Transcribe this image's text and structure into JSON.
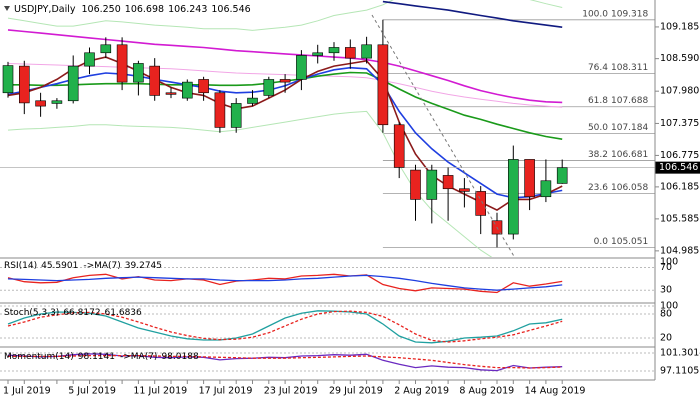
{
  "chart_data": {
    "type": "candlestick",
    "header": {
      "symbol": "USDJPY,Daily",
      "ohlc": [
        "106.250",
        "106.698",
        "106.243",
        "106.546"
      ]
    },
    "categories": [
      "1 Jul 2019",
      null,
      null,
      null,
      "5 Jul 2019",
      null,
      null,
      null,
      "11 Jul 2019",
      null,
      null,
      null,
      "17 Jul 2019",
      null,
      null,
      null,
      "23 Jul 2019",
      null,
      null,
      null,
      "29 Jul 2019",
      null,
      null,
      null,
      "2 Aug 2019",
      null,
      null,
      null,
      "8 Aug 2019",
      null,
      null,
      null,
      "14 Aug 2019",
      null,
      null
    ],
    "ohlc": [
      [
        107.95,
        108.53,
        107.86,
        108.46
      ],
      [
        108.45,
        108.55,
        107.55,
        107.76
      ],
      [
        107.8,
        107.95,
        107.5,
        107.7
      ],
      [
        107.75,
        107.85,
        107.65,
        107.8
      ],
      [
        107.8,
        108.65,
        107.75,
        108.45
      ],
      [
        108.45,
        108.8,
        108.3,
        108.7
      ],
      [
        108.7,
        108.99,
        108.6,
        108.85
      ],
      [
        108.85,
        108.99,
        108.0,
        108.15
      ],
      [
        108.15,
        108.55,
        107.9,
        108.5
      ],
      [
        108.45,
        108.6,
        107.8,
        107.9
      ],
      [
        107.95,
        108.05,
        107.85,
        107.92
      ],
      [
        107.85,
        108.2,
        107.8,
        108.15
      ],
      [
        108.2,
        108.25,
        107.8,
        107.95
      ],
      [
        107.95,
        108.0,
        107.2,
        107.3
      ],
      [
        107.3,
        107.85,
        107.2,
        107.75
      ],
      [
        107.75,
        108.0,
        107.7,
        107.85
      ],
      [
        107.9,
        108.25,
        107.85,
        108.2
      ],
      [
        108.2,
        108.3,
        107.95,
        108.15
      ],
      [
        108.2,
        108.75,
        108.0,
        108.65
      ],
      [
        108.65,
        108.85,
        108.5,
        108.7
      ],
      [
        108.7,
        108.9,
        108.55,
        108.8
      ],
      [
        108.8,
        108.95,
        108.4,
        108.6
      ],
      [
        108.6,
        109.0,
        108.5,
        108.85
      ],
      [
        108.85,
        109.32,
        107.2,
        107.35
      ],
      [
        107.35,
        107.4,
        106.35,
        106.55
      ],
      [
        106.5,
        106.6,
        105.55,
        105.95
      ],
      [
        105.95,
        106.6,
        105.5,
        106.5
      ],
      [
        106.4,
        106.55,
        105.55,
        106.15
      ],
      [
        106.15,
        106.35,
        105.8,
        106.1
      ],
      [
        106.1,
        106.2,
        105.3,
        105.65
      ],
      [
        105.55,
        105.7,
        105.05,
        105.3
      ],
      [
        105.3,
        106.96,
        105.2,
        106.7
      ],
      [
        106.7,
        106.7,
        105.75,
        106.0
      ],
      [
        106.0,
        106.7,
        105.9,
        106.3
      ],
      [
        106.25,
        106.698,
        106.243,
        106.546
      ]
    ],
    "up_color": "#22b14c",
    "down_color": "#e8231f",
    "ylim": [
      104.87,
      109.69
    ],
    "yticks": [
      109.185,
      {
        "value": 108.59,
        "label": "108.590"
      },
      {
        "value": 107.98,
        "label": "107.980"
      },
      107.375,
      106.775,
      106.185,
      105.585,
      104.985
    ],
    "last_price": 106.546,
    "fib_levels": [
      {
        "ratio": "100.0",
        "price": 109.318
      },
      {
        "ratio": "76.4",
        "price": 108.311
      },
      {
        "ratio": "61.8",
        "price": 107.688
      },
      {
        "ratio": "50.0",
        "price": 107.184
      },
      {
        "ratio": "38.2",
        "price": 106.681
      },
      {
        "ratio": "23.6",
        "price": 106.058
      },
      {
        "ratio": "0.0",
        "price": 105.051
      }
    ],
    "ma_lines": [
      {
        "color": "#b5e6b5",
        "values": [
          109.35,
          109.3,
          109.25,
          109.2,
          109.2,
          109.25,
          109.3,
          109.28,
          109.25,
          109.22,
          109.2,
          109.18,
          109.15,
          109.15,
          109.15,
          109.12,
          109.15,
          109.18,
          109.22,
          109.3,
          109.4,
          109.45,
          109.5,
          109.6,
          109.75,
          109.85,
          109.9,
          109.92,
          109.92,
          109.9,
          109.85,
          109.78,
          109.7,
          109.62,
          109.55
        ]
      },
      {
        "color": "#b5e6b5",
        "values": [
          107.25,
          107.27,
          107.28,
          107.3,
          107.32,
          107.35,
          107.35,
          107.33,
          107.32,
          107.31,
          107.3,
          107.28,
          107.25,
          107.22,
          107.25,
          107.3,
          107.35,
          107.4,
          107.45,
          107.5,
          107.55,
          107.58,
          107.6,
          107.2,
          106.6,
          106.1,
          105.75,
          105.5,
          105.25,
          105.0,
          104.8,
          104.7,
          104.65,
          104.62,
          104.6
        ]
      },
      {
        "color": "#f2a6e6",
        "values": [
          108.5,
          108.49,
          108.48,
          108.47,
          108.46,
          108.45,
          108.44,
          108.43,
          108.42,
          108.41,
          108.4,
          108.38,
          108.36,
          108.34,
          108.32,
          108.31,
          108.3,
          108.29,
          108.28,
          108.27,
          108.26,
          108.25,
          108.23,
          108.18,
          108.12,
          108.05,
          107.98,
          107.92,
          107.87,
          107.83,
          107.79,
          107.75,
          107.72,
          107.7,
          107.68
        ]
      },
      {
        "color": "#d21bd2",
        "values": [
          109.13,
          109.1,
          109.07,
          109.04,
          109.01,
          108.98,
          108.95,
          108.92,
          108.89,
          108.86,
          108.84,
          108.82,
          108.8,
          108.77,
          108.74,
          108.72,
          108.7,
          108.68,
          108.66,
          108.64,
          108.62,
          108.6,
          108.57,
          108.52,
          108.45,
          108.36,
          108.27,
          108.18,
          108.08,
          107.99,
          107.92,
          107.86,
          107.81,
          107.78,
          107.77
        ]
      },
      {
        "color": "#1a9a1a",
        "values": [
          108.1,
          108.1,
          108.09,
          108.09,
          108.1,
          108.11,
          108.12,
          108.12,
          108.12,
          108.11,
          108.1,
          108.1,
          108.1,
          108.09,
          108.09,
          108.1,
          108.13,
          108.17,
          108.21,
          108.26,
          108.3,
          108.33,
          108.32,
          108.18,
          108.02,
          107.87,
          107.75,
          107.64,
          107.53,
          107.45,
          107.36,
          107.28,
          107.2,
          107.13,
          107.08
        ]
      },
      {
        "color": "#1f3fe0",
        "values": [
          107.92,
          107.98,
          108.05,
          108.12,
          108.2,
          108.27,
          108.32,
          108.3,
          108.26,
          108.2,
          108.15,
          108.1,
          108.05,
          107.98,
          107.95,
          107.96,
          108.0,
          108.08,
          108.2,
          108.3,
          108.38,
          108.42,
          108.4,
          108.1,
          107.6,
          107.2,
          106.9,
          106.65,
          106.45,
          106.25,
          106.05,
          105.98,
          106.0,
          106.06,
          106.12
        ]
      },
      {
        "color": "#8b1a1a",
        "values": [
          107.9,
          107.95,
          108.05,
          108.2,
          108.4,
          108.55,
          108.62,
          108.5,
          108.35,
          108.2,
          108.05,
          107.95,
          107.9,
          107.75,
          107.65,
          107.7,
          107.85,
          108.0,
          108.2,
          108.35,
          108.45,
          108.5,
          108.55,
          108.2,
          107.4,
          106.8,
          106.4,
          106.2,
          106.05,
          105.9,
          105.75,
          105.95,
          105.95,
          106.05,
          106.2
        ]
      },
      {
        "color": "#101a80",
        "values": [
          null,
          null,
          null,
          null,
          null,
          null,
          null,
          null,
          null,
          null,
          null,
          null,
          null,
          null,
          null,
          null,
          null,
          null,
          null,
          null,
          null,
          null,
          null,
          109.66,
          109.62,
          109.58,
          109.54,
          109.5,
          109.45,
          109.4,
          109.35,
          109.3,
          109.26,
          109.22,
          109.18
        ]
      }
    ],
    "indicators": [
      {
        "label": "RSI(14)",
        "ylim": [
          18,
          85
        ],
        "yticks": [
          70,
          30
        ],
        "max_label": 100,
        "series": [
          {
            "name": "RSI(14)",
            "color": "#e8231f",
            "values": [
              52,
              45,
              43,
              44,
              52,
              56,
              58,
              50,
              54,
              48,
              47,
              50,
              48,
              40,
              46,
              48,
              51,
              50,
              55,
              56,
              58,
              55,
              57,
              40,
              33,
              29,
              34,
              33,
              32,
              28,
              26,
              43,
              37,
              41,
              45.5901
            ]
          },
          {
            "name": "->MA(7)",
            "color": "#1f3fe0",
            "values": [
              50,
              49,
              48,
              47,
              48,
              49,
              51,
              52,
              53,
              52,
              51,
              50,
              50,
              48,
              47,
              47,
              47,
              48,
              50,
              51,
              53,
              55,
              56,
              54,
              51,
              47,
              42,
              38,
              34,
              32,
              30,
              32,
              34,
              36,
              39.2745
            ]
          }
        ]
      },
      {
        "label": "Stoch(5,3,3)",
        "ylim": [
          0,
          100
        ],
        "yticks": [
          100,
          80,
          20
        ],
        "series": [
          {
            "name": "Stoch(5,3,3)",
            "color": "#20a0a0",
            "values": [
              55,
              70,
              80,
              85,
              84,
              82,
              75,
              60,
              45,
              35,
              25,
              18,
              15,
              15,
              20,
              30,
              50,
              70,
              82,
              88,
              87,
              85,
              80,
              55,
              25,
              10,
              8,
              12,
              20,
              22,
              25,
              38,
              55,
              58,
              66.8172
            ]
          },
          {
            "name": "Signal",
            "color": "#e8231f",
            "dashed": true,
            "values": [
              50,
              60,
              72,
              78,
              83,
              84,
              80,
              72,
              60,
              47,
              35,
              26,
              19,
              16,
              17,
              22,
              33,
              50,
              67,
              80,
              86,
              87,
              84,
              74,
              53,
              30,
              14,
              10,
              13,
              18,
              22,
              28,
              39,
              50,
              61.6836
            ]
          }
        ]
      },
      {
        "label": "Momentum(14)",
        "ylim": [
          95.48,
          102.0
        ],
        "yticks": [
          101.3014,
          97.1105
        ],
        "series": [
          {
            "name": "Momentum(14)",
            "color": "#6a2ac0",
            "values": [
              100.8,
              100.6,
              100.4,
              100.5,
              100.9,
              101.1,
              101.0,
              100.6,
              100.7,
              100.3,
              100.2,
              100.4,
              100.3,
              99.7,
              100.0,
              100.1,
              100.3,
              100.2,
              100.6,
              100.7,
              100.9,
              100.8,
              101.0,
              99.6,
              98.7,
              97.9,
              98.3,
              98.0,
              97.9,
              97.4,
              97.2,
              98.4,
              97.8,
              98.0,
              98.1141
            ]
          },
          {
            "name": "->MA(7)",
            "color": "#e8231f",
            "dashed": true,
            "values": [
              100.5,
              100.5,
              100.5,
              100.5,
              100.6,
              100.7,
              100.7,
              100.7,
              100.7,
              100.6,
              100.5,
              100.5,
              100.4,
              100.3,
              100.2,
              100.1,
              100.1,
              100.1,
              100.2,
              100.3,
              100.4,
              100.5,
              100.6,
              100.4,
              100.2,
              99.9,
              99.6,
              99.1,
              98.6,
              98.2,
              97.9,
              97.9,
              97.8,
              97.9,
              98.0188
            ]
          }
        ]
      }
    ]
  }
}
